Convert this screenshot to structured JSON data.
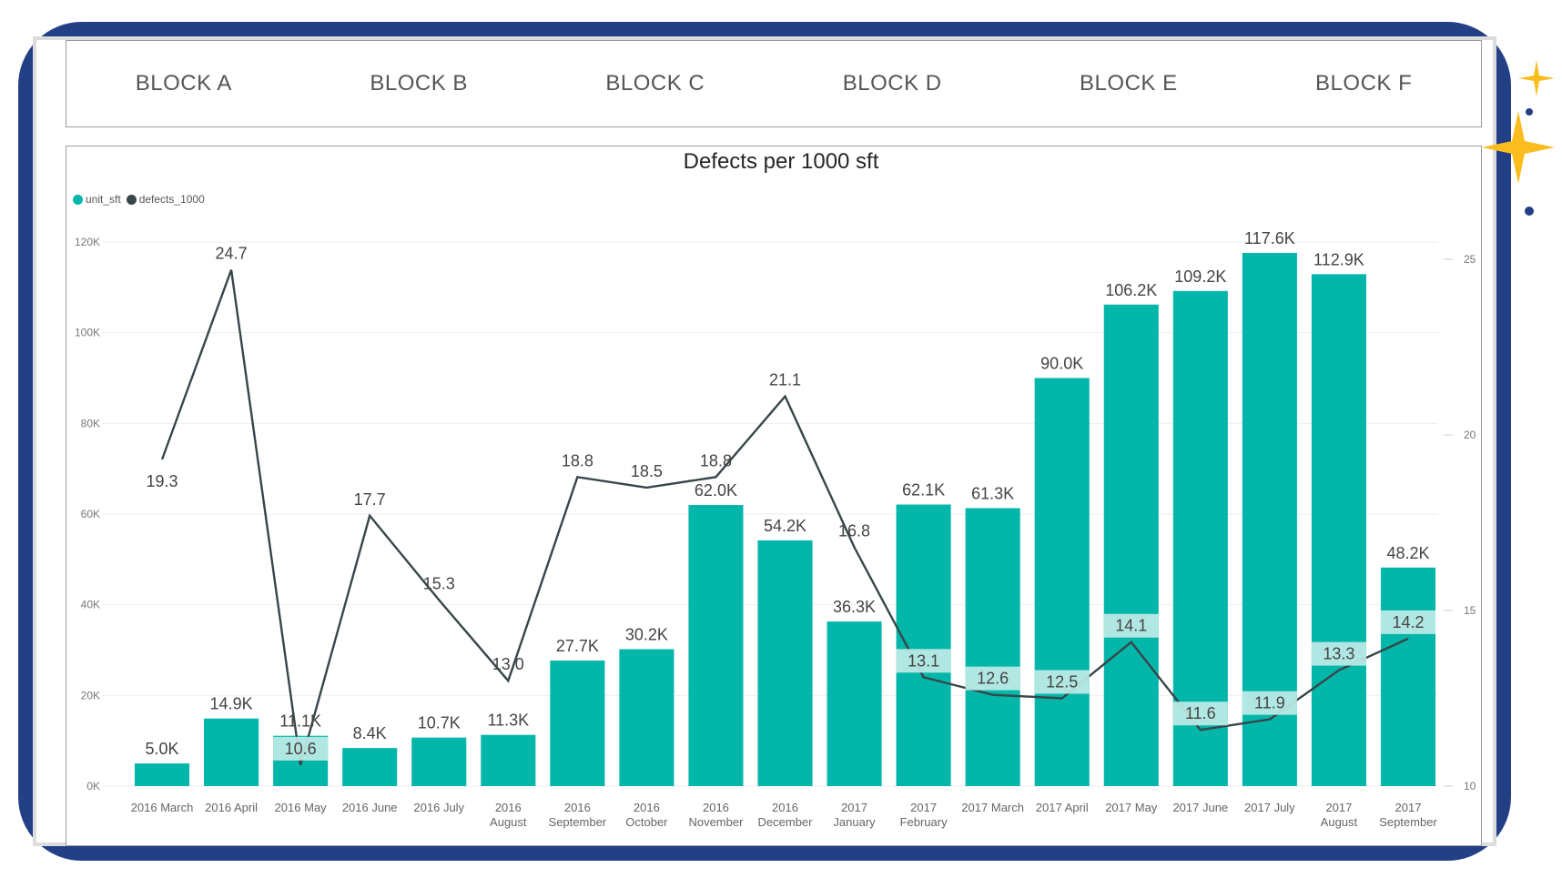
{
  "tabs": [
    "BLOCK A",
    "BLOCK B",
    "BLOCK C",
    "BLOCK D",
    "BLOCK E",
    "BLOCK F"
  ],
  "colors": {
    "bar": "#03b6aa",
    "line": "#374649",
    "frame": "#233f86",
    "sparkle": "#fbbd1e",
    "label_bg": "#c4ece8"
  },
  "chart_data": {
    "type": "bar",
    "title": "Defects per 1000 sft",
    "legend": [
      "unit_sft",
      "defects_1000"
    ],
    "legend_position": "top-left",
    "categories": [
      [
        "2016 March"
      ],
      [
        "2016 April"
      ],
      [
        "2016 May"
      ],
      [
        "2016 June"
      ],
      [
        "2016 July"
      ],
      [
        "2016",
        "August"
      ],
      [
        "2016",
        "September"
      ],
      [
        "2016",
        "October"
      ],
      [
        "2016",
        "November"
      ],
      [
        "2016",
        "December"
      ],
      [
        "2017",
        "January"
      ],
      [
        "2017",
        "February"
      ],
      [
        "2017 March"
      ],
      [
        "2017 April"
      ],
      [
        "2017 May"
      ],
      [
        "2017 June"
      ],
      [
        "2017 July"
      ],
      [
        "2017",
        "August"
      ],
      [
        "2017",
        "September"
      ]
    ],
    "series": [
      {
        "name": "unit_sft",
        "type": "bar",
        "axis": "left",
        "values": [
          5000,
          14900,
          11100,
          8400,
          10700,
          11300,
          27700,
          30200,
          62000,
          54200,
          36300,
          62100,
          61300,
          90000,
          106200,
          109200,
          117600,
          112900,
          48200
        ],
        "labels": [
          "5.0K",
          "14.9K",
          "11.1K",
          "8.4K",
          "10.7K",
          "11.3K",
          "27.7K",
          "30.2K",
          "62.0K",
          "54.2K",
          "36.3K",
          "62.1K",
          "61.3K",
          "90.0K",
          "106.2K",
          "109.2K",
          "117.6K",
          "112.9K",
          "48.2K"
        ]
      },
      {
        "name": "defects_1000",
        "type": "line",
        "axis": "right",
        "values": [
          19.3,
          24.7,
          10.6,
          17.7,
          15.3,
          13.0,
          18.8,
          18.5,
          18.8,
          21.1,
          16.8,
          13.1,
          12.6,
          12.5,
          14.1,
          11.6,
          11.9,
          13.3,
          14.2
        ],
        "labels": [
          "19.3",
          "24.7",
          "10.6",
          "17.7",
          "15.3",
          "13.0",
          "18.8",
          "18.5",
          "18.8",
          "21.1",
          "16.8",
          "13.1",
          "12.6",
          "12.5",
          "14.1",
          "11.6",
          "11.9",
          "13.3",
          "14.2"
        ]
      }
    ],
    "y_left": {
      "ticks": [
        "0K",
        "20K",
        "40K",
        "60K",
        "80K",
        "100K",
        "120K"
      ],
      "ylim": [
        0,
        120000
      ]
    },
    "y_right": {
      "ticks": [
        "10",
        "15",
        "20",
        "25"
      ],
      "ylim": [
        10,
        25.5
      ]
    },
    "grid": true
  }
}
